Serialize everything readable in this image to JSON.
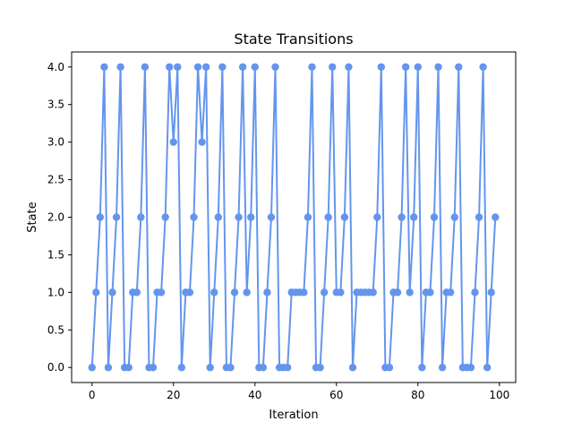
{
  "chart_data": {
    "type": "line",
    "title": "State Transitions",
    "xlabel": "Iteration",
    "ylabel": "State",
    "xlim": [
      -5,
      104
    ],
    "ylim": [
      -0.2,
      4.2
    ],
    "xticks": [
      0,
      20,
      40,
      60,
      80,
      100
    ],
    "yticks": [
      0.0,
      0.5,
      1.0,
      1.5,
      2.0,
      2.5,
      3.0,
      3.5,
      4.0
    ],
    "ytick_labels": [
      "0.0",
      "0.5",
      "1.0",
      "1.5",
      "2.0",
      "2.5",
      "3.0",
      "3.5",
      "4.0"
    ],
    "grid": false,
    "color": "#6495ED",
    "series": [
      {
        "x": [
          0,
          1,
          2,
          3,
          4,
          5,
          6,
          7,
          8,
          9,
          10,
          11,
          12,
          13,
          14,
          15,
          16,
          17,
          18,
          19,
          20,
          21,
          22,
          23,
          24,
          25,
          26,
          27,
          28,
          29,
          30,
          31,
          32,
          33,
          34,
          35,
          36,
          37,
          38,
          39,
          40,
          41,
          42,
          43,
          44,
          45,
          46,
          47,
          48,
          49,
          50,
          51,
          52,
          53,
          54,
          55,
          56,
          57,
          58,
          59,
          60,
          61,
          62,
          63,
          64,
          65,
          66,
          67,
          68,
          69,
          70,
          71,
          72,
          73,
          74,
          75,
          76,
          77,
          78,
          79,
          80,
          81,
          82,
          83,
          84,
          85,
          86,
          87,
          88,
          89,
          90,
          91,
          92,
          93,
          94,
          95,
          96,
          97,
          98,
          99
        ],
        "values": [
          0,
          1,
          2,
          4,
          0,
          1,
          2,
          4,
          0,
          0,
          1,
          1,
          2,
          4,
          0,
          0,
          1,
          1,
          2,
          4,
          3,
          4,
          0,
          1,
          1,
          2,
          4,
          3,
          4,
          0,
          1,
          2,
          4,
          0,
          0,
          1,
          2,
          4,
          1,
          2,
          4,
          0,
          0,
          1,
          2,
          4,
          0,
          0,
          0,
          1,
          1,
          1,
          1,
          2,
          4,
          0,
          0,
          1,
          2,
          4,
          1,
          1,
          2,
          4,
          0,
          1,
          1,
          1,
          1,
          1,
          2,
          4,
          0,
          0,
          1,
          1,
          2,
          4,
          1,
          2,
          4,
          0,
          1,
          1,
          2,
          4,
          0,
          1,
          1,
          2,
          4,
          0,
          0,
          0,
          1,
          2,
          4,
          0,
          1,
          2
        ]
      }
    ]
  }
}
